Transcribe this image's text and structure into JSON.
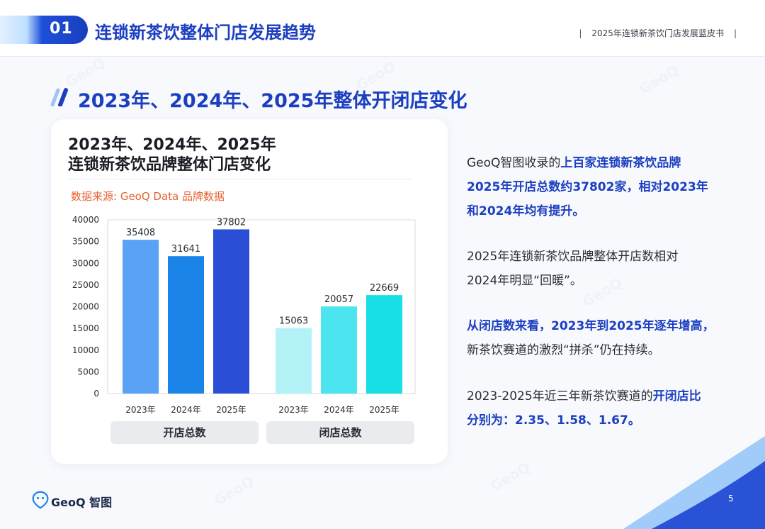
{
  "header": {
    "section_number": "01",
    "section_title": "连锁新茶饮整体门店发展趋势",
    "book_title": "2025年连锁新茶饮门店发展蓝皮书"
  },
  "sub_heading": "2023年、2024年、2025年整体开闭店变化",
  "card": {
    "title_line1": "2023年、2024年、2025年",
    "title_line2": "连锁新茶饮品牌整体门店变化",
    "source": "数据来源: GeoQ Data 品牌数据"
  },
  "chart_data": {
    "type": "bar",
    "title": "",
    "ylim": [
      0,
      40000
    ],
    "yticks": [
      0,
      5000,
      10000,
      15000,
      20000,
      25000,
      30000,
      35000,
      40000
    ],
    "groups": [
      {
        "name": "开店总数",
        "categories": [
          "2023年",
          "2024年",
          "2025年"
        ],
        "values": [
          35408,
          31641,
          37802
        ],
        "colors": [
          "#5aa2f5",
          "#1b84e8",
          "#2a4fd6"
        ]
      },
      {
        "name": "闭店总数",
        "categories": [
          "2023年",
          "2024年",
          "2025年"
        ],
        "values": [
          15063,
          20057,
          22669
        ],
        "colors": [
          "#b3f3f8",
          "#4ce5ef",
          "#18dee6"
        ]
      }
    ],
    "grid": false,
    "legend": "none"
  },
  "text": {
    "p1_a": "GeoQ智图收录的",
    "p1_b": "上百家连锁新茶饮品牌",
    "p1_c": "2025年开店总数约37802家，相对2023年",
    "p1_d": "和2024年均有提升。",
    "p2_a": "2025年连锁新茶饮品牌整体开店数相对",
    "p2_b": "2024年明显“回暖”。",
    "p3_a": "从闭店数来看，2023年到2025年逐年增高，",
    "p3_b": "新茶饮赛道的激烈“拼杀”仍在持续。",
    "p4_a": "2023-2025年近三年新茶饮赛道的",
    "p4_b": "开闭店比",
    "p4_c": "分别为：2.35、1.58、1.67。"
  },
  "footer": {
    "logo_text": "GeoQ 智图",
    "page_number": "5"
  },
  "colors": {
    "accent": "#1c3fc1",
    "source": "#e7602e"
  }
}
